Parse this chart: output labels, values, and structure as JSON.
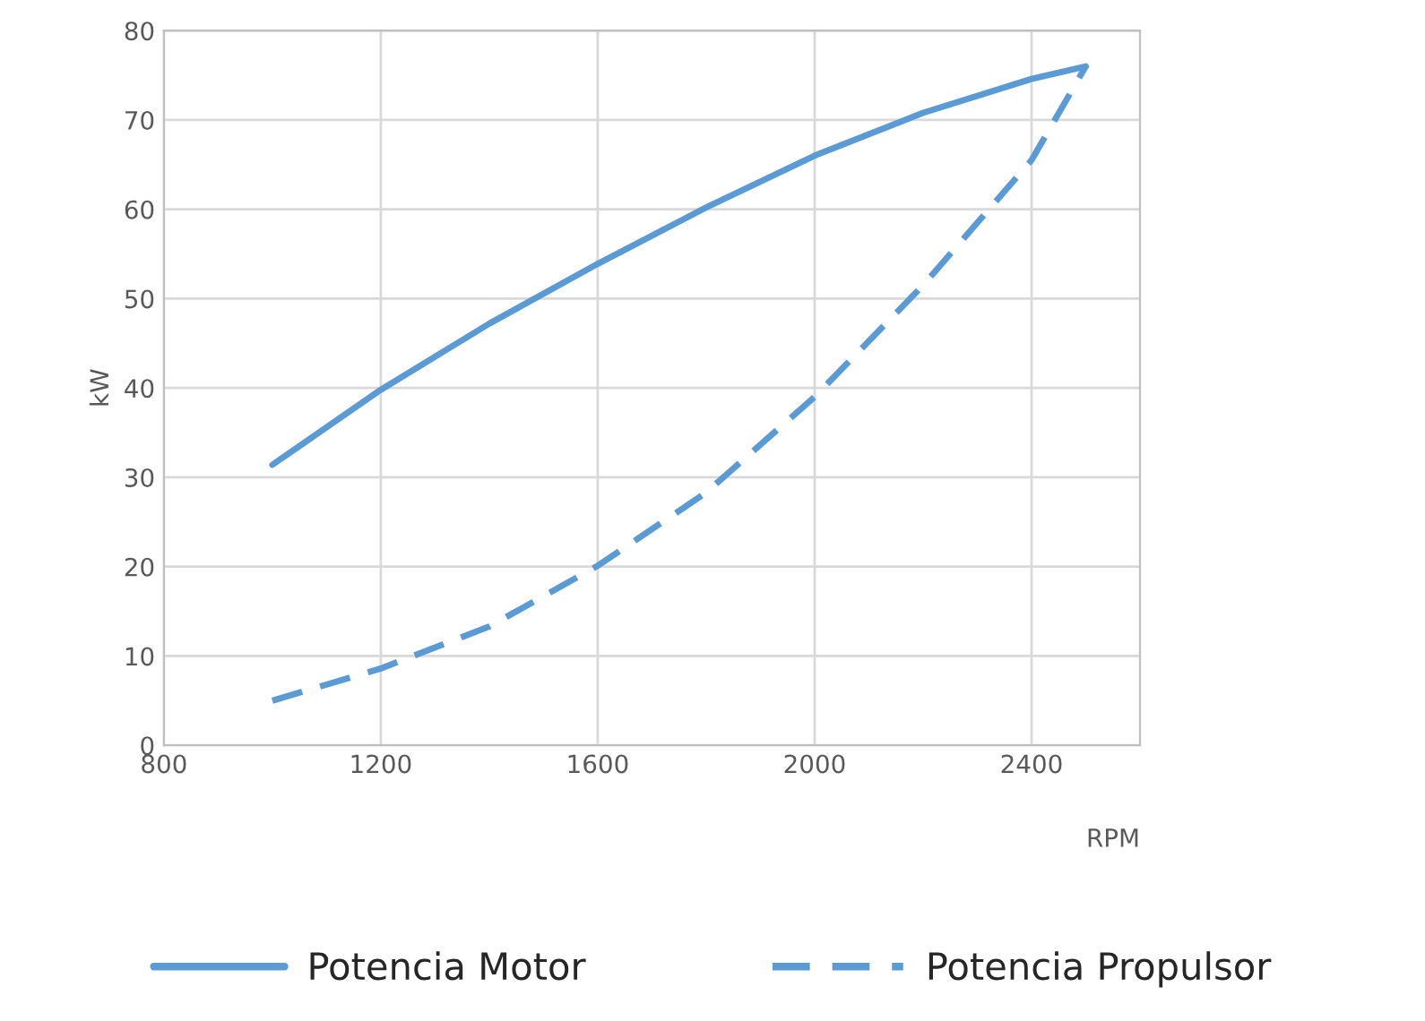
{
  "chart_data": {
    "type": "line",
    "xlabel": "RPM",
    "ylabel": "kW",
    "xlim": [
      800,
      2600
    ],
    "xticks": [
      800,
      1200,
      1600,
      2000,
      2400
    ],
    "ylim": [
      0,
      80
    ],
    "yticks": [
      0,
      10,
      20,
      30,
      40,
      50,
      60,
      70,
      80
    ],
    "grid": true,
    "legend": "bottom",
    "series": [
      {
        "name": "Potencia Motor",
        "color": "#5b9bd5",
        "line_style": "solid",
        "x": [
          1000,
          1200,
          1400,
          1600,
          1800,
          2000,
          2200,
          2400,
          2500
        ],
        "values": [
          31.4,
          39.8,
          47.2,
          53.9,
          60.2,
          66,
          70.8,
          74.6,
          76
        ]
      },
      {
        "name": "Potencia Propulsor",
        "color": "#5b9bd5",
        "line_style": "dashed",
        "x": [
          1000,
          1200,
          1400,
          1600,
          1800,
          2000,
          2200,
          2400,
          2500
        ],
        "values": [
          5,
          8.6,
          13.3,
          20.1,
          28.3,
          39,
          51.5,
          65.5,
          76
        ]
      }
    ]
  }
}
